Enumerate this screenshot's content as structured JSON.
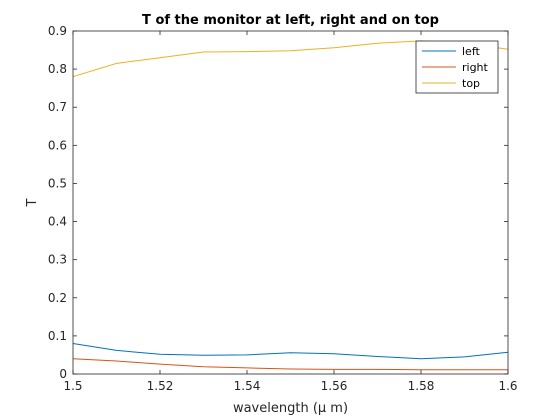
{
  "chart_data": {
    "type": "line",
    "title": "T of the monitor at left, right and on top",
    "xlabel": "wavelength (μ m)",
    "ylabel": "T",
    "xlim": [
      1.5,
      1.6
    ],
    "ylim": [
      0,
      0.9
    ],
    "xticks": [
      "1.5",
      "1.52",
      "1.54",
      "1.56",
      "1.58",
      "1.6"
    ],
    "yticks": [
      "0",
      "0.1",
      "0.2",
      "0.3",
      "0.4",
      "0.5",
      "0.6",
      "0.7",
      "0.8",
      "0.9"
    ],
    "grid": false,
    "legend_position": "top-right",
    "x": [
      1.5,
      1.51,
      1.52,
      1.53,
      1.54,
      1.55,
      1.56,
      1.57,
      1.58,
      1.59,
      1.6
    ],
    "series": [
      {
        "name": "left",
        "color": "#0072BD",
        "values": [
          0.08,
          0.062,
          0.052,
          0.049,
          0.05,
          0.056,
          0.053,
          0.046,
          0.04,
          0.045,
          0.057
        ]
      },
      {
        "name": "right",
        "color": "#D95319",
        "values": [
          0.04,
          0.034,
          0.026,
          0.019,
          0.016,
          0.013,
          0.012,
          0.012,
          0.011,
          0.011,
          0.011
        ]
      },
      {
        "name": "top",
        "color": "#EDB120",
        "values": [
          0.78,
          0.815,
          0.83,
          0.845,
          0.846,
          0.848,
          0.856,
          0.868,
          0.874,
          0.868,
          0.852
        ]
      }
    ]
  }
}
